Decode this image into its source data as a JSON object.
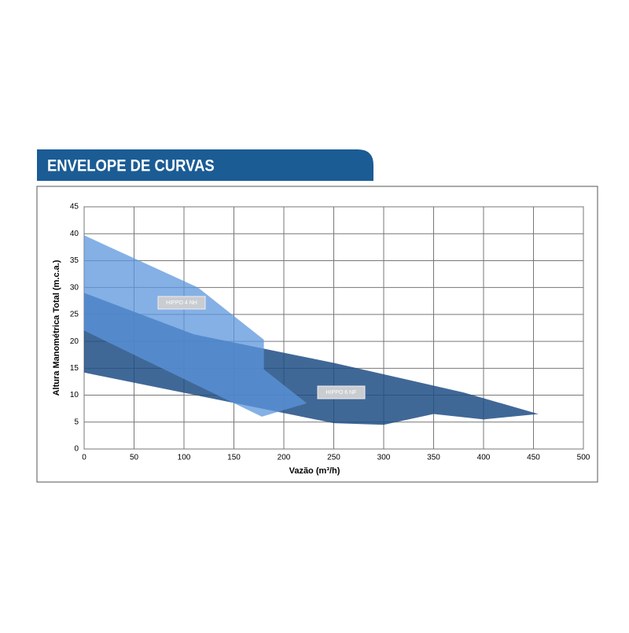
{
  "chart_data": {
    "type": "area-envelope",
    "title": "ENVELOPE DE CURVAS",
    "x_label": "Vazão (m³/h)",
    "y_label": "Altura Manométrica Total  (m.c.a.)",
    "xlim": [
      0,
      500
    ],
    "xticks": [
      0,
      50,
      100,
      150,
      200,
      250,
      300,
      350,
      400,
      450,
      500
    ],
    "ylim": [
      0,
      45
    ],
    "yticks": [
      0,
      5,
      10,
      15,
      20,
      25,
      30,
      35,
      40,
      45
    ],
    "grid": true,
    "series": [
      {
        "name": "HIPPO 6 NF",
        "color": "#1f4e85",
        "x": [
          0,
          110,
          250,
          380,
          455,
          400,
          350,
          300,
          250,
          0
        ],
        "values": [
          29,
          21.3,
          16,
          10.5,
          6.5,
          5.5,
          6.5,
          4.5,
          4.8,
          14.2
        ]
      },
      {
        "name": "HIPPO 4 NH",
        "color": "#5b96dc",
        "x": [
          0,
          114,
          180,
          180,
          223,
          178,
          0
        ],
        "values": [
          39.7,
          30,
          20.3,
          14.8,
          8.5,
          6,
          22
        ]
      }
    ]
  }
}
